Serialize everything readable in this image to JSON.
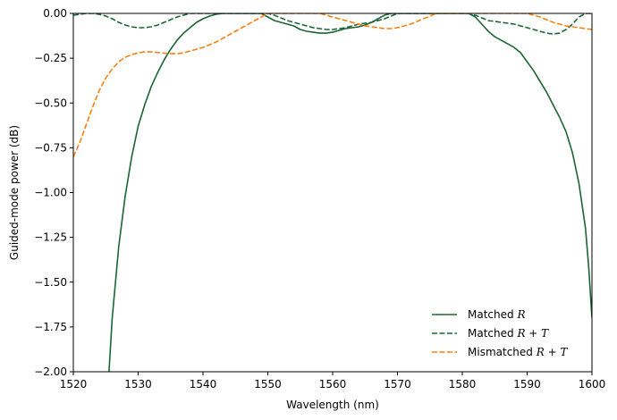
{
  "chart_data": {
    "type": "line",
    "xlabel": "Wavelength (nm)",
    "ylabel": "Guided-mode power (dB)",
    "xlim": [
      1520,
      1600
    ],
    "ylim": [
      -2.0,
      0.0
    ],
    "xticks": [
      "1520",
      "1530",
      "1540",
      "1550",
      "1560",
      "1570",
      "1580",
      "1590",
      "1600"
    ],
    "xtick_values": [
      1520,
      1530,
      1540,
      1550,
      1560,
      1570,
      1580,
      1590,
      1600
    ],
    "yticks": [
      "0.00",
      "−0.25",
      "−0.50",
      "−0.75",
      "−1.00",
      "−1.25",
      "−1.50",
      "−1.75",
      "−2.00"
    ],
    "ytick_values": [
      0,
      -0.25,
      -0.5,
      -0.75,
      -1.0,
      -1.25,
      -1.5,
      -1.75,
      -2.0
    ],
    "grid": false,
    "legend_position": "lower-right",
    "series": [
      {
        "name": "Matched R",
        "legend_parts": [
          "Matched ",
          "R",
          ""
        ],
        "color": "#1b6535",
        "style": "solid",
        "x": [
          1525.5,
          1526,
          1527,
          1528,
          1529,
          1530,
          1531,
          1532,
          1533,
          1534,
          1535,
          1536,
          1537,
          1538,
          1539,
          1540,
          1541,
          1542,
          1543,
          1544,
          1545,
          1546,
          1547,
          1548,
          1549,
          1550,
          1551,
          1552,
          1553,
          1554,
          1555,
          1556,
          1557,
          1558,
          1559,
          1560,
          1561,
          1562,
          1563,
          1564,
          1565,
          1566,
          1567,
          1568,
          1569,
          1570,
          1571,
          1572,
          1573,
          1574,
          1575,
          1576,
          1577,
          1578,
          1579,
          1580,
          1581,
          1582,
          1583,
          1584,
          1585,
          1586,
          1587,
          1588,
          1589,
          1590,
          1591,
          1592,
          1593,
          1594,
          1595,
          1596,
          1597,
          1598,
          1599,
          1599.5,
          1600
        ],
        "y": [
          -2.0,
          -1.7,
          -1.3,
          -1.02,
          -0.8,
          -0.63,
          -0.51,
          -0.41,
          -0.33,
          -0.26,
          -0.2,
          -0.15,
          -0.11,
          -0.08,
          -0.05,
          -0.03,
          -0.015,
          -0.005,
          0.0,
          0.0,
          0.0,
          0.0,
          0.0,
          0.0,
          0.0,
          -0.02,
          -0.04,
          -0.05,
          -0.06,
          -0.07,
          -0.09,
          -0.1,
          -0.105,
          -0.11,
          -0.11,
          -0.105,
          -0.095,
          -0.085,
          -0.08,
          -0.075,
          -0.065,
          -0.05,
          -0.03,
          -0.01,
          0.0,
          0.0,
          0.0,
          0.0,
          0.0,
          0.0,
          0.0,
          0.0,
          0.0,
          0.0,
          0.0,
          0.0,
          0.0,
          -0.02,
          -0.06,
          -0.1,
          -0.13,
          -0.15,
          -0.17,
          -0.19,
          -0.22,
          -0.27,
          -0.32,
          -0.38,
          -0.44,
          -0.51,
          -0.58,
          -0.66,
          -0.78,
          -0.95,
          -1.2,
          -1.42,
          -1.7
        ]
      },
      {
        "name": "Matched R + T",
        "legend_parts": [
          "Matched ",
          "R + T",
          ""
        ],
        "color": "#1b6535",
        "style": "dashed",
        "x": [
          1520,
          1521,
          1522,
          1523,
          1524,
          1525,
          1526,
          1527,
          1528,
          1529,
          1530,
          1531,
          1532,
          1533,
          1534,
          1535,
          1536,
          1537,
          1538,
          1539,
          1540,
          1545,
          1549,
          1550,
          1551,
          1552,
          1553,
          1554,
          1555,
          1556,
          1557,
          1558,
          1559,
          1560,
          1561,
          1562,
          1563,
          1564,
          1565,
          1566,
          1567,
          1568,
          1569,
          1570,
          1575,
          1580,
          1581,
          1582,
          1583,
          1584,
          1585,
          1586,
          1587,
          1588,
          1589,
          1590,
          1591,
          1592,
          1593,
          1594,
          1595,
          1596,
          1597,
          1598,
          1599,
          1600
        ],
        "y": [
          -0.01,
          -0.005,
          0.0,
          0.0,
          -0.005,
          -0.015,
          -0.03,
          -0.05,
          -0.065,
          -0.075,
          -0.08,
          -0.08,
          -0.075,
          -0.065,
          -0.05,
          -0.035,
          -0.02,
          -0.01,
          0.0,
          0.0,
          0.0,
          0.0,
          0.0,
          0.0,
          -0.01,
          -0.025,
          -0.04,
          -0.05,
          -0.06,
          -0.07,
          -0.08,
          -0.085,
          -0.09,
          -0.09,
          -0.085,
          -0.08,
          -0.07,
          -0.06,
          -0.055,
          -0.05,
          -0.04,
          -0.03,
          -0.015,
          0.0,
          0.0,
          0.0,
          0.0,
          -0.01,
          -0.025,
          -0.04,
          -0.045,
          -0.05,
          -0.055,
          -0.06,
          -0.07,
          -0.08,
          -0.09,
          -0.1,
          -0.11,
          -0.115,
          -0.11,
          -0.09,
          -0.06,
          -0.02,
          0.0,
          0.0
        ]
      },
      {
        "name": "Mismatched R + T",
        "legend_parts": [
          "Mismatched ",
          "R + T",
          ""
        ],
        "color": "#ff7f0e",
        "style": "dashed",
        "x": [
          1520,
          1521,
          1522,
          1523,
          1524,
          1525,
          1526,
          1527,
          1528,
          1529,
          1530,
          1531,
          1532,
          1533,
          1534,
          1535,
          1536,
          1537,
          1538,
          1539,
          1540,
          1541,
          1542,
          1543,
          1544,
          1545,
          1546,
          1547,
          1548,
          1549,
          1550,
          1555,
          1558,
          1559,
          1560,
          1561,
          1562,
          1563,
          1564,
          1565,
          1566,
          1567,
          1568,
          1569,
          1570,
          1571,
          1572,
          1573,
          1574,
          1575,
          1576,
          1580,
          1585,
          1588,
          1589,
          1590,
          1591,
          1592,
          1593,
          1594,
          1595,
          1596,
          1597,
          1598,
          1599,
          1600
        ],
        "y": [
          -0.8,
          -0.72,
          -0.62,
          -0.52,
          -0.43,
          -0.36,
          -0.31,
          -0.27,
          -0.245,
          -0.23,
          -0.22,
          -0.215,
          -0.215,
          -0.218,
          -0.222,
          -0.225,
          -0.225,
          -0.22,
          -0.21,
          -0.2,
          -0.19,
          -0.175,
          -0.16,
          -0.14,
          -0.12,
          -0.1,
          -0.08,
          -0.06,
          -0.04,
          -0.02,
          0.0,
          0.0,
          0.0,
          -0.01,
          -0.02,
          -0.03,
          -0.04,
          -0.05,
          -0.06,
          -0.07,
          -0.075,
          -0.08,
          -0.085,
          -0.085,
          -0.08,
          -0.07,
          -0.06,
          -0.045,
          -0.03,
          -0.015,
          0.0,
          0.0,
          0.0,
          0.0,
          0.0,
          0.0,
          -0.01,
          -0.02,
          -0.035,
          -0.05,
          -0.06,
          -0.07,
          -0.075,
          -0.08,
          -0.085,
          -0.09
        ]
      }
    ]
  }
}
